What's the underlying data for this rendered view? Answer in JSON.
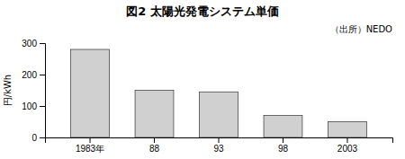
{
  "chart_data": {
    "type": "bar",
    "title": "図2  太陽光発電システム単価",
    "subtitle": "（出所）NEDO",
    "ylabel": "円/kWh",
    "categories": [
      "1983年",
      "88",
      "93",
      "98",
      "2003"
    ],
    "values": [
      280,
      150,
      145,
      70,
      50
    ],
    "color": "#d0d0d0",
    "ylim": [
      0,
      300
    ],
    "yticks": [
      0,
      100,
      200,
      300
    ],
    "grid": false
  }
}
